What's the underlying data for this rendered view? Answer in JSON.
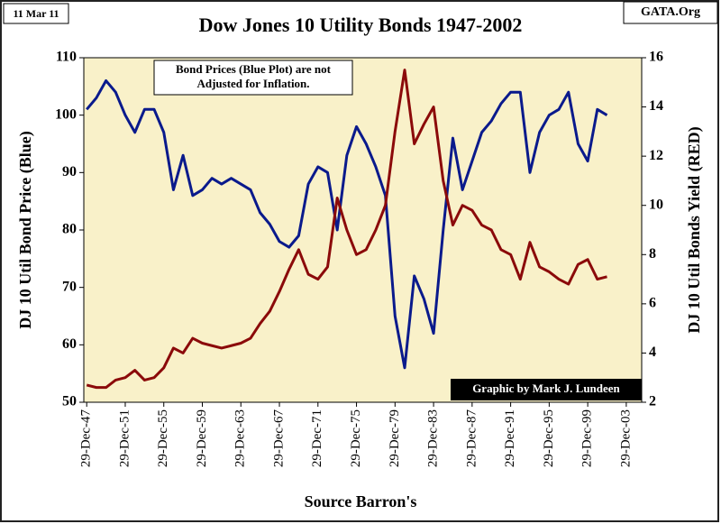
{
  "chart_data": {
    "type": "line",
    "title": "Dow Jones 10 Utility Bonds 1947-2002",
    "date_label": "11 Mar 11",
    "site_label": "GATA.Org",
    "annotation": "Bond Prices (Blue Plot) are not Adjusted for Inflation.",
    "credit": "Graphic by Mark J. Lundeen",
    "xlabel": "Source Barron's",
    "ylabel": "DJ 10 Util Bond Price  (Blue)",
    "y2label": "DJ 10 Util Bonds Yield (RED)",
    "x": [
      1948,
      1949,
      1950,
      1951,
      1952,
      1953,
      1954,
      1955,
      1956,
      1957,
      1958,
      1959,
      1960,
      1961,
      1962,
      1963,
      1964,
      1965,
      1966,
      1967,
      1968,
      1969,
      1970,
      1971,
      1972,
      1973,
      1974,
      1975,
      1976,
      1977,
      1978,
      1979,
      1980,
      1981,
      1982,
      1983,
      1984,
      1985,
      1986,
      1987,
      1988,
      1989,
      1990,
      1991,
      1992,
      1993,
      1994,
      1995,
      1996,
      1997,
      1998,
      1999,
      2000,
      2001,
      2002
    ],
    "series": [
      {
        "name": "Bond Price",
        "color": "#0a1a8c",
        "axis": "y",
        "values": [
          101,
          103,
          106,
          104,
          100,
          97,
          101,
          101,
          97,
          87,
          93,
          86,
          87,
          89,
          88,
          89,
          88,
          87,
          83,
          81,
          78,
          77,
          79,
          88,
          91,
          90,
          80,
          93,
          98,
          95,
          91,
          86,
          65,
          56,
          72,
          68,
          62,
          80,
          96,
          87,
          92,
          97,
          99,
          102,
          104,
          104,
          90,
          97,
          100,
          101,
          104,
          95,
          92,
          101,
          100
        ]
      },
      {
        "name": "Bond Yield",
        "color": "#8b0a0a",
        "axis": "y2",
        "values": [
          2.7,
          2.6,
          2.6,
          2.9,
          3.0,
          3.3,
          2.9,
          3.0,
          3.4,
          4.2,
          4.0,
          4.6,
          4.4,
          4.3,
          4.2,
          4.3,
          4.4,
          4.6,
          5.2,
          5.7,
          6.5,
          7.4,
          8.2,
          7.2,
          7.0,
          7.5,
          10.3,
          9.0,
          8.0,
          8.2,
          9.0,
          10.0,
          13.0,
          15.5,
          12.5,
          13.3,
          14.0,
          11.0,
          9.2,
          10.0,
          9.8,
          9.2,
          9.0,
          8.2,
          8.0,
          7.0,
          8.5,
          7.5,
          7.3,
          7.0,
          6.8,
          7.6,
          7.8,
          7.0,
          7.1
        ]
      }
    ],
    "xlim": [
      1947.7,
      2005.6
    ],
    "xticks": [
      {
        "value": 1948,
        "label": "29-Dec-47"
      },
      {
        "value": 1952,
        "label": "29-Dec-51"
      },
      {
        "value": 1956,
        "label": "29-Dec-55"
      },
      {
        "value": 1960,
        "label": "29-Dec-59"
      },
      {
        "value": 1964,
        "label": "29-Dec-63"
      },
      {
        "value": 1968,
        "label": "29-Dec-67"
      },
      {
        "value": 1972,
        "label": "29-Dec-71"
      },
      {
        "value": 1976,
        "label": "29-Dec-75"
      },
      {
        "value": 1980,
        "label": "29-Dec-79"
      },
      {
        "value": 1984,
        "label": "29-Dec-83"
      },
      {
        "value": 1988,
        "label": "29-Dec-87"
      },
      {
        "value": 1992,
        "label": "29-Dec-91"
      },
      {
        "value": 1996,
        "label": "29-Dec-95"
      },
      {
        "value": 2000,
        "label": "29-Dec-99"
      },
      {
        "value": 2004,
        "label": "29-Dec-03"
      }
    ],
    "ylim": [
      50,
      110
    ],
    "yticks": [
      50,
      60,
      70,
      80,
      90,
      100,
      110
    ],
    "y2lim": [
      2,
      16
    ],
    "y2ticks": [
      2,
      4,
      6,
      8,
      10,
      12,
      14,
      16
    ]
  }
}
